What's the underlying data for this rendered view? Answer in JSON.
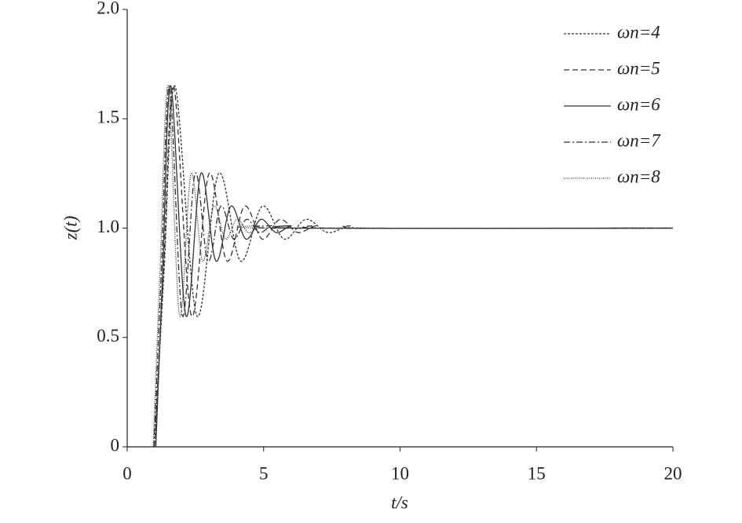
{
  "chart_data": {
    "type": "line",
    "x_label": "t/s",
    "y_label": "z(t)",
    "xlim": [
      0,
      20
    ],
    "ylim": [
      0,
      2
    ],
    "xticks": [
      0,
      5,
      10,
      15,
      20
    ],
    "yticks": [
      0,
      0.5,
      {
        "value": 1,
        "label": "1.0"
      },
      1.5,
      {
        "value": 2,
        "label": "2.0"
      }
    ],
    "grid": false,
    "legend": "upper right",
    "series": [
      {
        "name": "ωn=4",
        "color": "#333333",
        "dash": "3,2",
        "x": [
          1.0,
          1.35,
          1.75,
          2.55,
          3.35,
          4.15,
          4.95,
          5.75,
          6.55,
          7.35,
          8.15,
          8.95,
          20
        ],
        "values": [
          0,
          0.8,
          1.65,
          0.6,
          1.25,
          0.85,
          1.1,
          0.95,
          1.04,
          0.98,
          1.01,
          1.0,
          1.0
        ]
      },
      {
        "name": "ωn=5",
        "color": "#333333",
        "dash": "7,4",
        "x": [
          1.0,
          1.33,
          1.7,
          2.35,
          3.0,
          3.65,
          4.3,
          4.95,
          5.6,
          6.25,
          6.9,
          7.55,
          20
        ],
        "values": [
          0,
          0.8,
          1.65,
          0.6,
          1.25,
          0.85,
          1.1,
          0.95,
          1.04,
          0.98,
          1.01,
          1.0,
          1.0
        ]
      },
      {
        "name": "ωn=6",
        "color": "#333333",
        "dash": "none",
        "x": [
          1.05,
          1.3,
          1.6,
          2.15,
          2.7,
          3.25,
          3.8,
          4.35,
          4.9,
          5.45,
          6.0,
          6.55,
          20
        ],
        "values": [
          0,
          0.8,
          1.65,
          0.6,
          1.25,
          0.85,
          1.1,
          0.95,
          1.04,
          0.98,
          1.01,
          1.0,
          1.0
        ]
      },
      {
        "name": "ωn=7",
        "color": "#333333",
        "dash": "8,3,2,3",
        "x": [
          0.98,
          1.25,
          1.55,
          2.02,
          2.49,
          2.96,
          3.43,
          3.9,
          4.37,
          4.84,
          5.31,
          5.78,
          20
        ],
        "values": [
          0,
          0.8,
          1.65,
          0.6,
          1.25,
          0.85,
          1.1,
          0.95,
          1.04,
          0.98,
          1.01,
          1.0,
          1.0
        ]
      },
      {
        "name": "ωn=8",
        "color": "#333333",
        "dash": "1,1.5",
        "x": [
          0.95,
          1.2,
          1.5,
          1.92,
          2.34,
          2.76,
          3.18,
          3.6,
          4.02,
          4.44,
          4.86,
          5.28,
          20
        ],
        "values": [
          0,
          0.8,
          1.65,
          0.6,
          1.25,
          0.85,
          1.1,
          0.95,
          1.04,
          0.98,
          1.01,
          1.0,
          1.0
        ]
      }
    ]
  }
}
